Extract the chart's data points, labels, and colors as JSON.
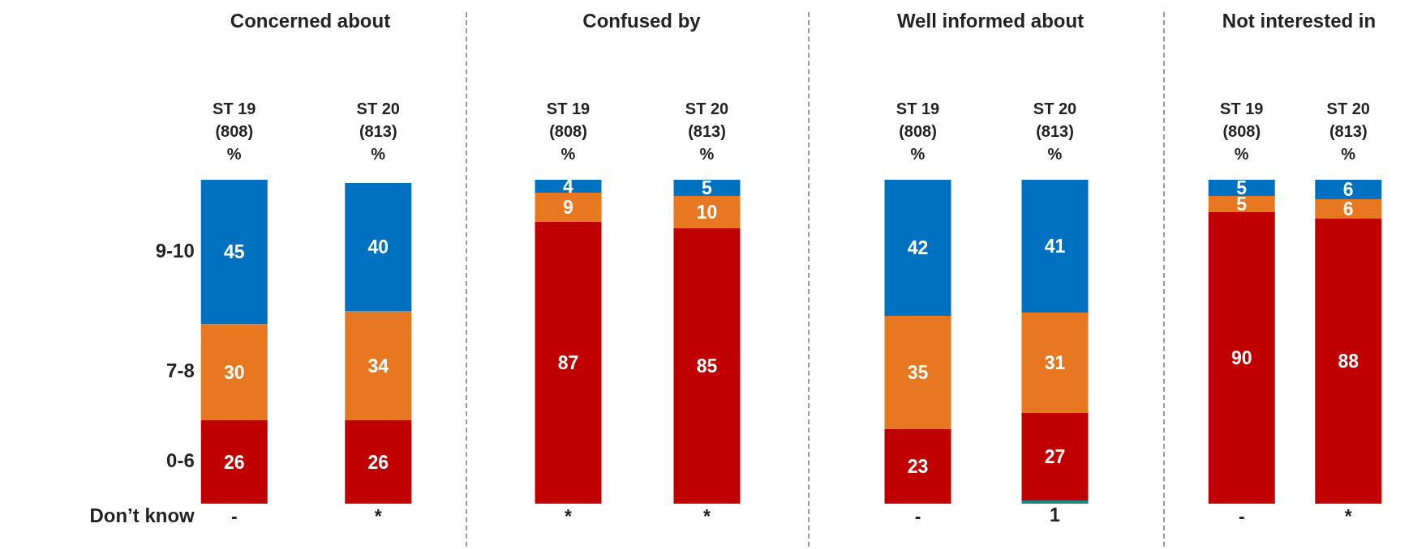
{
  "chart_data": [
    {
      "type": "bar",
      "title": "Concerned about",
      "categories": [
        "ST 19\n(808)\n%",
        "ST 20\n(813)\n%"
      ],
      "stacked": true,
      "data_labels": true,
      "series": [
        {
          "name": "0-6",
          "color": "#c00000",
          "values": [
            26,
            26
          ]
        },
        {
          "name": "7-8",
          "color": "#e87722",
          "values": [
            30,
            34
          ]
        },
        {
          "name": "9-10",
          "color": "#0070c0",
          "values": [
            45,
            40
          ]
        }
      ],
      "annotations": [
        "Don’t know",
        {
          "text": "-",
          "x": "ST 19\n(808)\n%",
          "y": 0
        },
        {
          "text": "*",
          "x": "ST 20\n(813)\n%",
          "y": 0
        }
      ]
    },
    {
      "type": "bar",
      "title": "Confused by",
      "categories": [
        "ST 19\n(808)\n%",
        "ST 20\n(813)\n%"
      ],
      "stacked": true,
      "data_labels": true,
      "series": [
        {
          "color": "#c00000",
          "values": [
            87,
            85
          ]
        },
        {
          "color": "#e87722",
          "values": [
            9,
            10
          ]
        },
        {
          "color": "#0070c0",
          "values": [
            4,
            5
          ]
        }
      ],
      "annotations": [
        {
          "text": "*",
          "x": "ST 19\n(808)\n%",
          "y": 0
        },
        {
          "text": "*",
          "x": "ST 20\n(813)\n%",
          "y": 0
        }
      ]
    },
    {
      "type": "bar",
      "title": "Well informed about",
      "categories": [
        "ST 19\n(808)\n%",
        "ST 20\n(813)\n%"
      ],
      "stacked": true,
      "data_labels": true,
      "series": [
        {
          "color": "#17868a",
          "values": [
            null,
            1
          ]
        },
        {
          "color": "#c00000",
          "values": [
            23,
            27
          ]
        },
        {
          "color": "#e87722",
          "values": [
            35,
            31
          ]
        },
        {
          "color": "#0070c0",
          "values": [
            42,
            41
          ]
        }
      ],
      "annotations": [
        {
          "text": "-",
          "x": "ST 19\n(808)\n%",
          "y": 0
        }
      ]
    },
    {
      "type": "bar",
      "title": "Not interested in",
      "categories": [
        "ST 19\n(808)\n%",
        "ST 20\n(813)\n%"
      ],
      "stacked": true,
      "data_labels": true,
      "series": [
        {
          "color": "#c00000",
          "values": [
            90,
            88
          ]
        },
        {
          "color": "#e87722",
          "values": [
            5,
            6
          ]
        },
        {
          "color": "#0070c0",
          "values": [
            5,
            6
          ]
        }
      ],
      "annotations": [
        {
          "text": "-",
          "x": "ST 19\n(808)\n%",
          "y": 0
        },
        {
          "text": "*",
          "x": "ST 20\n(813)\n%",
          "y": 0
        }
      ]
    }
  ]
}
